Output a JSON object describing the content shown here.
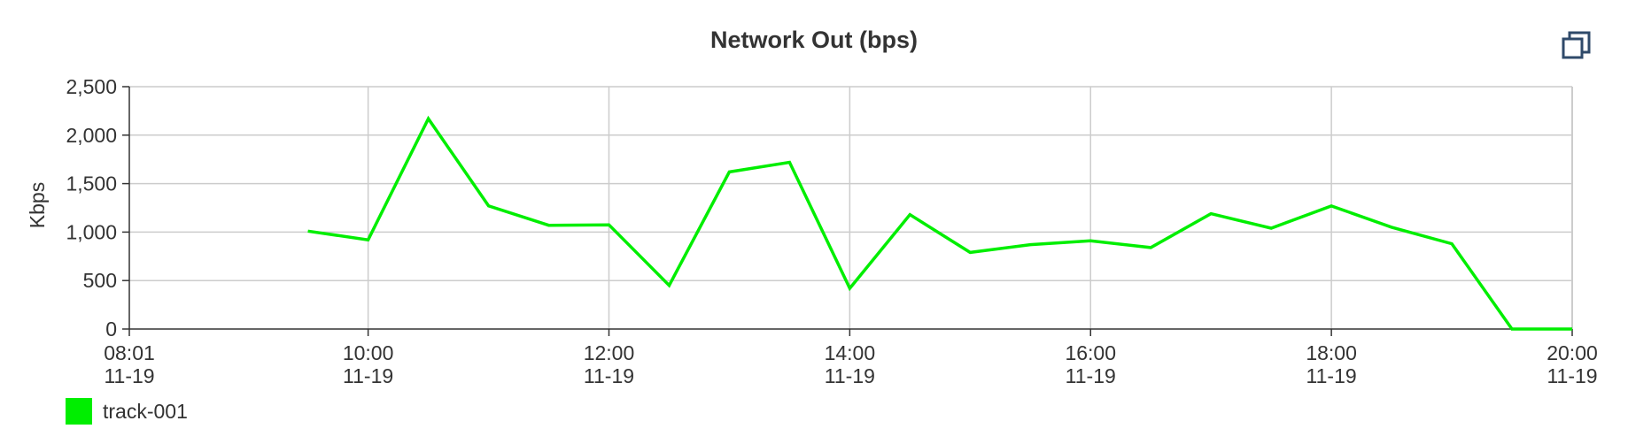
{
  "chart_data": {
    "type": "line",
    "title": "Network Out (bps)",
    "ylabel": "Kbps",
    "xlabel": "",
    "ylim": [
      0,
      2500
    ],
    "y_ticks": [
      "0",
      "500",
      "1,000",
      "1,500",
      "2,000",
      "2,500"
    ],
    "y_tick_values": [
      0,
      500,
      1000,
      1500,
      2000,
      2500
    ],
    "xlim": [
      "08:01",
      "20:00"
    ],
    "x_ticks": [
      {
        "time": "08:01",
        "date": "11-19"
      },
      {
        "time": "10:00",
        "date": "11-19"
      },
      {
        "time": "12:00",
        "date": "11-19"
      },
      {
        "time": "14:00",
        "date": "11-19"
      },
      {
        "time": "16:00",
        "date": "11-19"
      },
      {
        "time": "18:00",
        "date": "11-19"
      },
      {
        "time": "20:00",
        "date": "11-19"
      }
    ],
    "grid": true,
    "legend_position": "bottom-left",
    "series": [
      {
        "name": "track-001",
        "color": "#00ee00",
        "x": [
          "09:30",
          "10:00",
          "10:30",
          "11:00",
          "11:30",
          "12:00",
          "12:30",
          "13:00",
          "13:30",
          "14:00",
          "14:30",
          "15:00",
          "15:30",
          "16:00",
          "16:30",
          "17:00",
          "17:30",
          "18:00",
          "18:30",
          "19:00",
          "19:30",
          "20:00"
        ],
        "values": [
          1010,
          920,
          2170,
          1270,
          1070,
          1075,
          450,
          1620,
          1720,
          420,
          1180,
          790,
          870,
          910,
          840,
          1190,
          1040,
          1270,
          1050,
          880,
          0,
          0
        ]
      }
    ]
  },
  "ui": {
    "expand_icon": "restore-window-icon"
  },
  "colors": {
    "grid": "#cccccc",
    "axis": "#333333",
    "text": "#333333",
    "icon": "#2f4a6a"
  }
}
